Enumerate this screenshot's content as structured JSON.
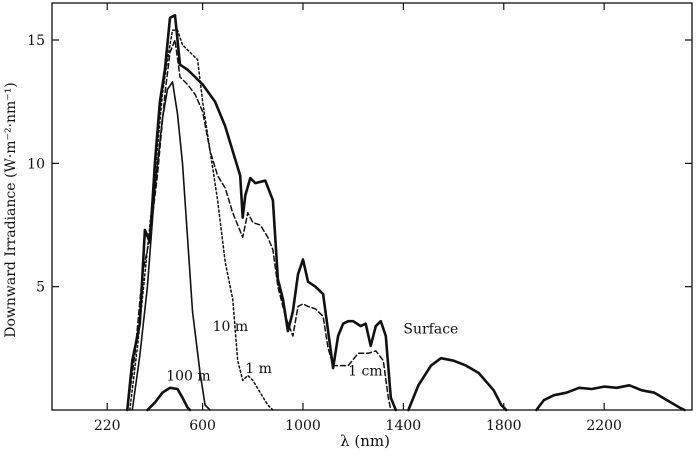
{
  "chart_data": {
    "type": "line",
    "title": "",
    "xlabel": "λ (nm)",
    "ylabel": "Downward Irradiance (W·m⁻²·nm⁻¹)",
    "xlim": [
      0,
      2550
    ],
    "ylim": [
      0,
      16.5
    ],
    "xticks": [
      220,
      600,
      1000,
      1400,
      1800,
      2200
    ],
    "yticks": [
      5,
      10,
      15
    ],
    "grid": false,
    "legend": "none",
    "series": [
      {
        "name": "Surface",
        "style": "solid-thick",
        "segments": [
          [
            [
              300,
              0
            ],
            [
              320,
              2
            ],
            [
              350,
              3.5
            ],
            [
              370,
              7.3
            ],
            [
              390,
              6.8
            ],
            [
              410,
              10
            ],
            [
              430,
              12.5
            ],
            [
              450,
              13.8
            ],
            [
              470,
              15.9
            ],
            [
              490,
              16
            ],
            [
              510,
              14
            ],
            [
              540,
              13.8
            ],
            [
              570,
              13.5
            ],
            [
              600,
              13.2
            ],
            [
              650,
              12.5
            ],
            [
              690,
              11.5
            ],
            [
              720,
              10.5
            ],
            [
              750,
              9.5
            ],
            [
              760,
              7.8
            ],
            [
              770,
              8.7
            ],
            [
              790,
              9.4
            ],
            [
              810,
              9.2
            ],
            [
              850,
              9.3
            ],
            [
              880,
              8.5
            ],
            [
              900,
              5.3
            ],
            [
              920,
              4.5
            ],
            [
              940,
              3.2
            ],
            [
              960,
              4
            ],
            [
              980,
              5.5
            ],
            [
              1000,
              6.1
            ],
            [
              1020,
              5.2
            ],
            [
              1050,
              5
            ],
            [
              1080,
              4.7
            ],
            [
              1100,
              3.2
            ],
            [
              1120,
              1.7
            ],
            [
              1140,
              3
            ],
            [
              1160,
              3.5
            ],
            [
              1180,
              3.6
            ],
            [
              1200,
              3.6
            ],
            [
              1230,
              3.4
            ],
            [
              1250,
              3.5
            ],
            [
              1270,
              2.6
            ],
            [
              1290,
              3.4
            ],
            [
              1310,
              3.6
            ],
            [
              1330,
              3
            ],
            [
              1350,
              0.5
            ],
            [
              1370,
              0
            ]
          ],
          [
            [
              1420,
              0
            ],
            [
              1460,
              1
            ],
            [
              1510,
              1.8
            ],
            [
              1550,
              2.1
            ],
            [
              1600,
              2
            ],
            [
              1650,
              1.8
            ],
            [
              1700,
              1.5
            ],
            [
              1760,
              0.8
            ],
            [
              1790,
              0.2
            ],
            [
              1810,
              0
            ]
          ],
          [
            [
              1930,
              0
            ],
            [
              1960,
              0.4
            ],
            [
              2000,
              0.6
            ],
            [
              2050,
              0.7
            ],
            [
              2100,
              0.9
            ],
            [
              2150,
              0.85
            ],
            [
              2200,
              0.95
            ],
            [
              2250,
              0.9
            ],
            [
              2300,
              1
            ],
            [
              2350,
              0.8
            ],
            [
              2400,
              0.7
            ],
            [
              2450,
              0.4
            ],
            [
              2500,
              0.1
            ],
            [
              2520,
              0
            ]
          ]
        ]
      },
      {
        "name": "1 cm",
        "style": "dashed",
        "segments": [
          [
            [
              300,
              0
            ],
            [
              330,
              2.2
            ],
            [
              360,
              5.5
            ],
            [
              390,
              7
            ],
            [
              420,
              9.5
            ],
            [
              450,
              12.8
            ],
            [
              470,
              14.5
            ],
            [
              490,
              15
            ],
            [
              510,
              13.5
            ],
            [
              540,
              13.2
            ],
            [
              570,
              12.8
            ],
            [
              600,
              12.1
            ],
            [
              630,
              10.5
            ],
            [
              660,
              9.5
            ],
            [
              690,
              9
            ],
            [
              720,
              8
            ],
            [
              740,
              7.5
            ],
            [
              760,
              7
            ],
            [
              780,
              8
            ],
            [
              800,
              7.6
            ],
            [
              830,
              7.5
            ],
            [
              860,
              7
            ],
            [
              880,
              6.5
            ],
            [
              900,
              5
            ],
            [
              930,
              3.8
            ],
            [
              960,
              3
            ],
            [
              980,
              4.2
            ],
            [
              1000,
              4.3
            ],
            [
              1020,
              4.2
            ],
            [
              1050,
              4.1
            ],
            [
              1080,
              3.8
            ],
            [
              1100,
              2.5
            ],
            [
              1120,
              1.8
            ],
            [
              1150,
              1.8
            ],
            [
              1180,
              1.8
            ],
            [
              1220,
              2.3
            ],
            [
              1260,
              2.3
            ],
            [
              1290,
              2.4
            ],
            [
              1320,
              2
            ],
            [
              1340,
              0.5
            ],
            [
              1350,
              0
            ]
          ]
        ]
      },
      {
        "name": "1 m",
        "style": "dotted",
        "segments": [
          [
            [
              310,
              0
            ],
            [
              340,
              2.5
            ],
            [
              380,
              6.5
            ],
            [
              410,
              9.5
            ],
            [
              440,
              12.8
            ],
            [
              460,
              14.2
            ],
            [
              480,
              15.4
            ],
            [
              500,
              15.4
            ],
            [
              520,
              14.8
            ],
            [
              550,
              14.5
            ],
            [
              580,
              14.2
            ],
            [
              600,
              12.5
            ],
            [
              630,
              10.5
            ],
            [
              660,
              8.5
            ],
            [
              690,
              6
            ],
            [
              720,
              4.5
            ],
            [
              740,
              2
            ],
            [
              760,
              1.2
            ],
            [
              780,
              1.4
            ],
            [
              800,
              1.2
            ],
            [
              830,
              0.7
            ],
            [
              860,
              0.2
            ],
            [
              880,
              0
            ]
          ]
        ]
      },
      {
        "name": "10 m",
        "style": "solid-thin",
        "segments": [
          [
            [
              320,
              0
            ],
            [
              350,
              2.2
            ],
            [
              380,
              5
            ],
            [
              410,
              9
            ],
            [
              440,
              11.8
            ],
            [
              460,
              13
            ],
            [
              480,
              13.3
            ],
            [
              500,
              12
            ],
            [
              520,
              10
            ],
            [
              540,
              7
            ],
            [
              560,
              4
            ],
            [
              590,
              1.5
            ],
            [
              610,
              0.2
            ],
            [
              630,
              0
            ]
          ]
        ]
      },
      {
        "name": "100 m",
        "style": "solid-thick",
        "segments": [
          [
            [
              380,
              0
            ],
            [
              410,
              0.3
            ],
            [
              440,
              0.7
            ],
            [
              470,
              0.9
            ],
            [
              500,
              0.85
            ],
            [
              520,
              0.5
            ],
            [
              540,
              0.1
            ],
            [
              550,
              0
            ]
          ]
        ]
      }
    ],
    "annotations": [
      {
        "text": "Surface",
        "x": 1400,
        "y": 3.1
      },
      {
        "text": "1 cm",
        "x": 1180,
        "y": 1.4
      },
      {
        "text": "1 m",
        "x": 770,
        "y": 1.5
      },
      {
        "text": "10 m",
        "x": 640,
        "y": 3.2
      },
      {
        "text": "100 m",
        "x": 455,
        "y": 1.2
      }
    ]
  }
}
